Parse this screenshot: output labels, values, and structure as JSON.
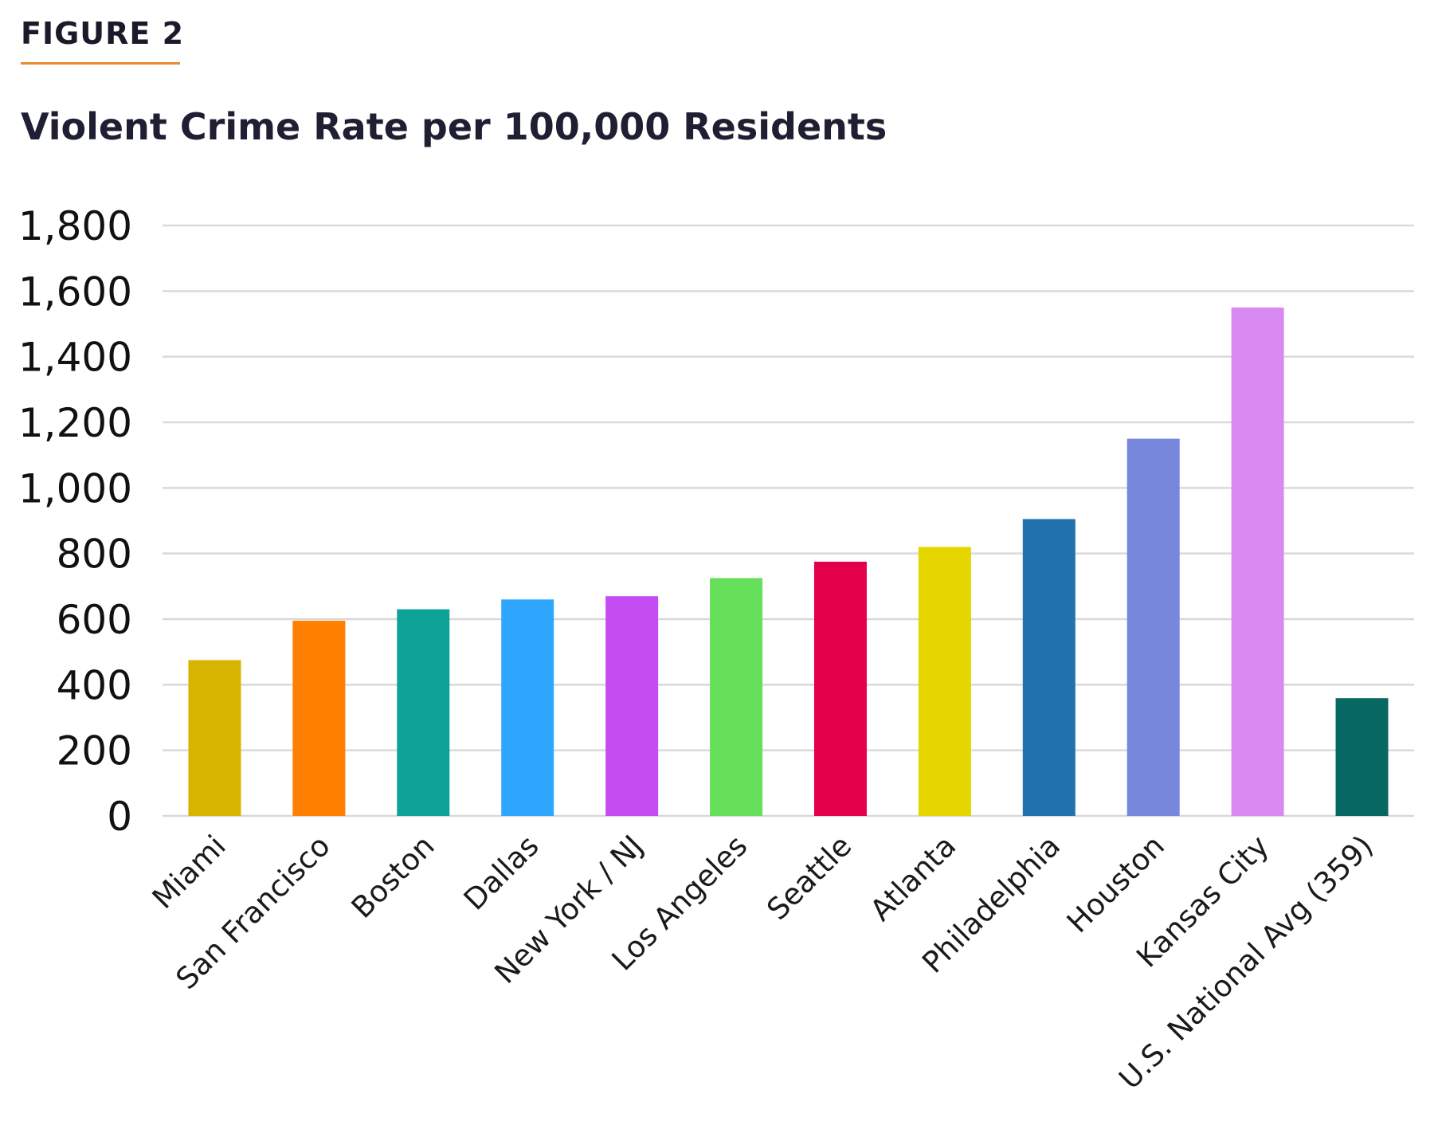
{
  "figure_label": "FIGURE 2",
  "colors": {
    "accent_rule": "#e88a2e",
    "gridline": "#d9d9d9"
  },
  "chart_data": {
    "type": "bar",
    "title": "Violent Crime Rate per 100,000 Residents",
    "xlabel": "",
    "ylabel": "",
    "ylim": [
      0,
      1800
    ],
    "yticks": [
      0,
      200,
      400,
      600,
      800,
      1000,
      1200,
      1400,
      1600,
      1800
    ],
    "ytick_labels": [
      "0",
      "200",
      "400",
      "600",
      "800",
      "1,000",
      "1,200",
      "1,400",
      "1,600",
      "1,800"
    ],
    "grid": true,
    "categories": [
      "Miami",
      "San Francisco",
      "Boston",
      "Dallas",
      "New York / NJ",
      "Los Angeles",
      "Seattle",
      "Atlanta",
      "Philadelphia",
      "Houston",
      "Kansas City",
      "U.S. National Avg (359)"
    ],
    "values": [
      475,
      595,
      630,
      660,
      670,
      725,
      775,
      820,
      905,
      1150,
      1550,
      359
    ],
    "bar_colors": [
      "#d7b400",
      "#ff7f00",
      "#0ea398",
      "#2fa7ff",
      "#c54cf0",
      "#66e05a",
      "#e4004a",
      "#e5d600",
      "#2172ad",
      "#7687dc",
      "#d98af2",
      "#086862"
    ]
  }
}
